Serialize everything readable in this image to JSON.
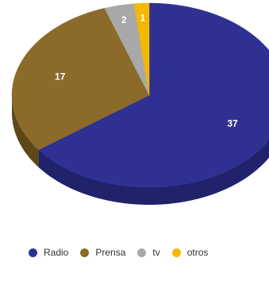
{
  "chart_data": {
    "type": "pie",
    "title": "",
    "slices": [
      {
        "label": "Radio",
        "value": 37,
        "data_label": "37",
        "color": "#2E3192",
        "side": "#20226B"
      },
      {
        "label": "Prensa",
        "value": 17,
        "data_label": "17",
        "color": "#8B6A2A",
        "side": "#5E4718"
      },
      {
        "label": "tv",
        "value": 2,
        "data_label": "2",
        "color": "#A8A8A8",
        "side": "#7A7A7A"
      },
      {
        "label": "otros",
        "value": 1,
        "data_label": "1",
        "color": "#F5B800",
        "side": "#B88B00"
      }
    ],
    "legend_position": "bottom",
    "style": "3d"
  },
  "legend": [
    {
      "label": "Radio",
      "color": "#2E3192"
    },
    {
      "label": "Prensa",
      "color": "#8B6A2A"
    },
    {
      "label": "tv",
      "color": "#A8A8A8"
    },
    {
      "label": "otros",
      "color": "#F5B800"
    }
  ]
}
